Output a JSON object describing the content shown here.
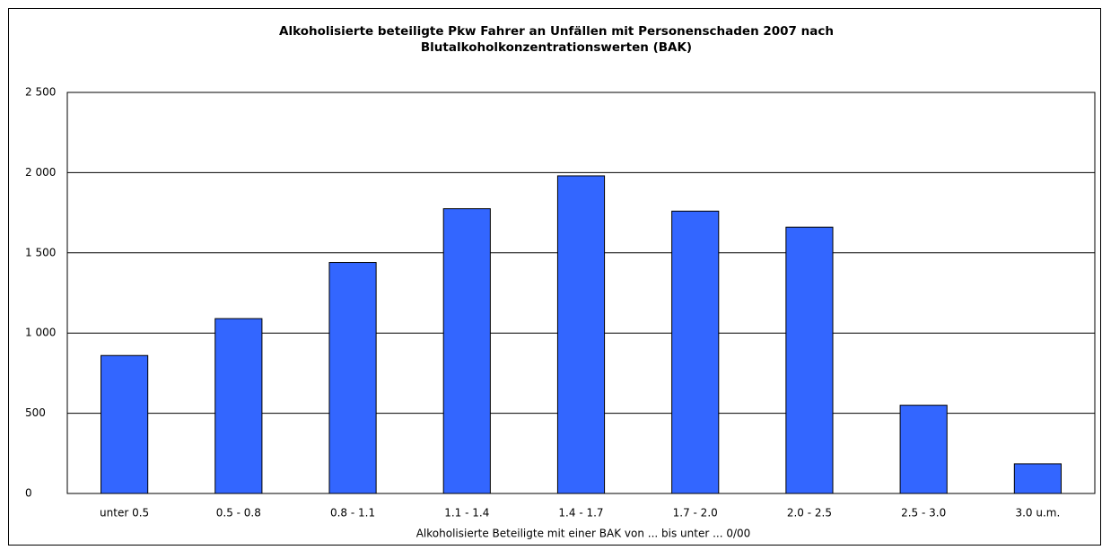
{
  "chart_data": {
    "type": "bar",
    "title": [
      "Alkoholisierte beteiligte Pkw Fahrer an Unfällen mit Personenschaden 2007 nach",
      "Blutalkoholkonzentrationswerten (BAK)"
    ],
    "x_label": "Alkoholisierte Beteiligte mit einer BAK von ... bis unter ... 0/00",
    "categories": [
      "unter 0.5",
      "0.5 - 0.8",
      "0.8 - 1.1",
      "1.1 - 1.4",
      "1.4 - 1.7",
      "1.7 - 2.0",
      "2.0 - 2.5",
      "2.5 - 3.0",
      "3.0 u.m."
    ],
    "values": [
      860,
      1090,
      1440,
      1775,
      1980,
      1760,
      1660,
      550,
      185
    ],
    "color": "#3366ff",
    "ylim": [
      0,
      2500
    ],
    "yticks": [
      0,
      500,
      {
        "value": 1000,
        "label": "1 000"
      },
      {
        "value": 1500,
        "label": "1 500"
      },
      {
        "value": 2000,
        "label": "2 000"
      },
      {
        "value": 2500,
        "label": "2 500"
      }
    ],
    "grid": true
  }
}
